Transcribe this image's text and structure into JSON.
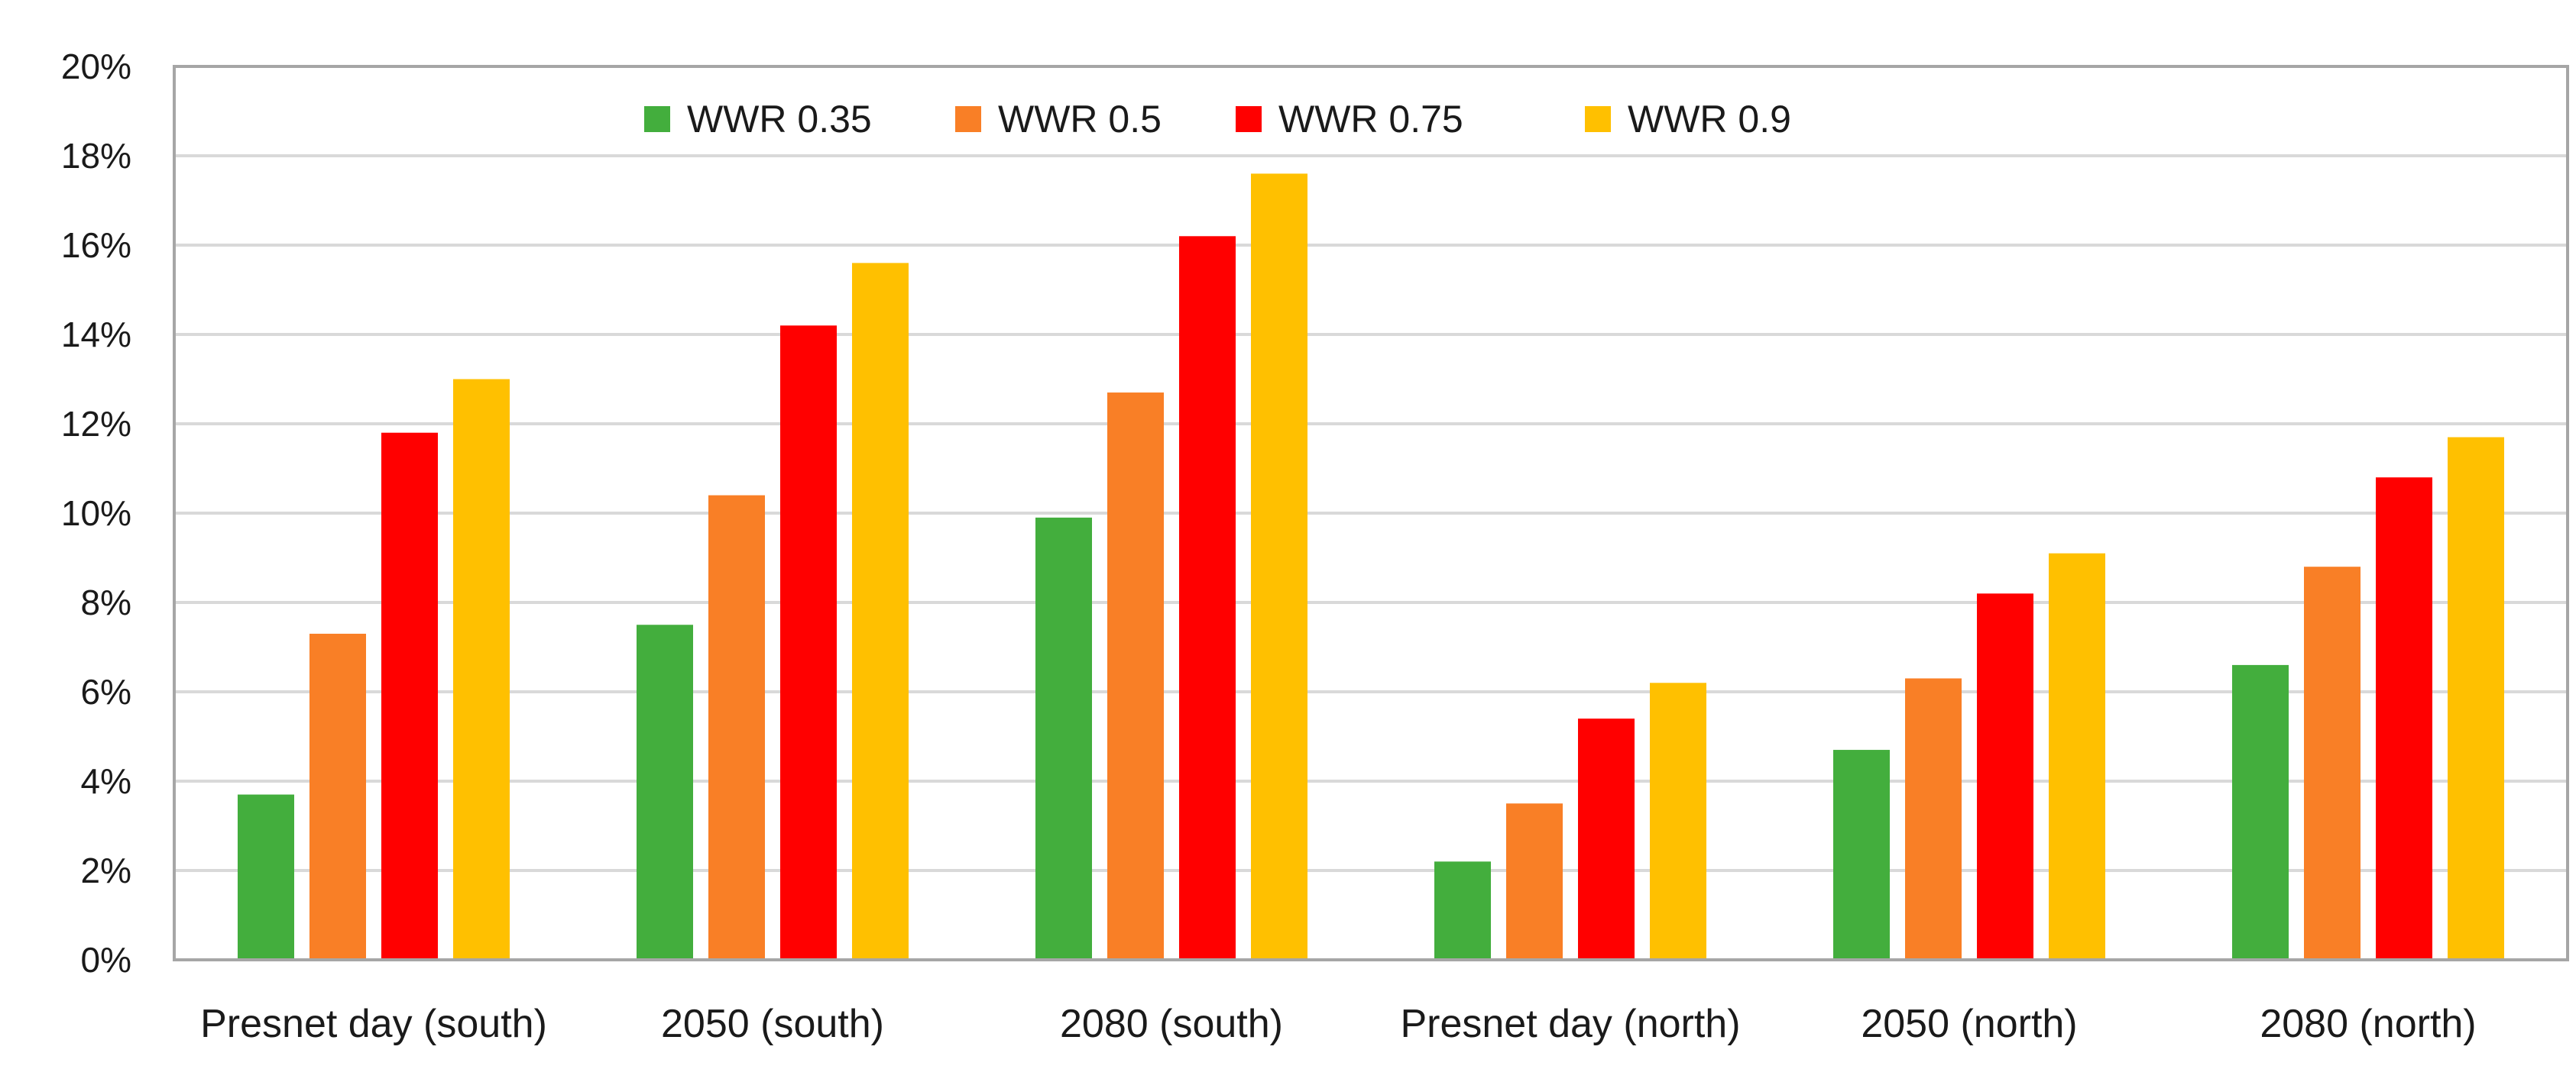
{
  "chart_data": {
    "type": "bar",
    "title": "",
    "xlabel": "",
    "ylabel": "",
    "ylim": [
      0,
      20
    ],
    "y_ticks": [
      "0%",
      "2%",
      "4%",
      "6%",
      "8%",
      "10%",
      "12%",
      "14%",
      "16%",
      "18%",
      "20%"
    ],
    "grid": true,
    "legend_position": "top",
    "categories": [
      "Presnet day (south)",
      "2050 (south)",
      "2080 (south)",
      "Presnet day (north)",
      "2050 (north)",
      "2080 (north)"
    ],
    "series": [
      {
        "name": "WWR 0.35",
        "color": "#43AE3D",
        "values": [
          3.7,
          7.5,
          9.9,
          2.2,
          4.7,
          6.6
        ]
      },
      {
        "name": "WWR 0.5",
        "color": "#F97F26",
        "values": [
          7.3,
          10.4,
          12.7,
          3.5,
          6.3,
          8.8
        ]
      },
      {
        "name": "WWR 0.75",
        "color": "#FF0000",
        "values": [
          11.8,
          14.2,
          16.2,
          5.4,
          8.2,
          10.8
        ]
      },
      {
        "name": "WWR 0.9",
        "color": "#FFC000",
        "values": [
          13.0,
          15.6,
          17.6,
          6.2,
          9.1,
          11.7
        ]
      }
    ],
    "gridline_color": "#D9D9D9",
    "axis_color": "#A6A6A6"
  }
}
